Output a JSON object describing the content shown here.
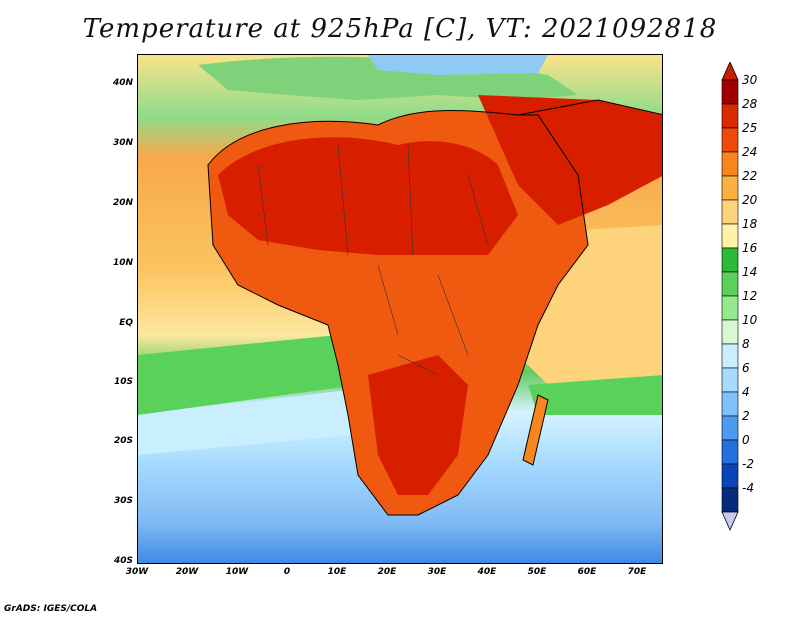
{
  "title": "Temperature at 925hPa [C], VT: 2021092818",
  "credit": "GrADS: IGES/COLA",
  "y_axis_labels": [
    "40N",
    "30N",
    "20N",
    "10N",
    "EQ",
    "10S",
    "20S",
    "30S",
    "40S"
  ],
  "x_axis_labels": [
    "30W",
    "20W",
    "10W",
    "0",
    "10E",
    "20E",
    "30E",
    "40E",
    "50E",
    "60E",
    "70E"
  ],
  "colorbar": {
    "labels": [
      "30",
      "28",
      "25",
      "24",
      "22",
      "20",
      "18",
      "16",
      "14",
      "12",
      "10",
      "8",
      "6",
      "4",
      "2",
      "0",
      "-2",
      "-4"
    ],
    "colors": [
      "#a00000",
      "#d92a00",
      "#f04a0a",
      "#f8861c",
      "#fbb040",
      "#fdd47c",
      "#fff3a8",
      "#2bbb37",
      "#5ad15a",
      "#95e890",
      "#d9f7d4",
      "#c9efff",
      "#a6dbff",
      "#7fc1ff",
      "#4b9bf1",
      "#2470de",
      "#0a46b8",
      "#062a7c"
    ],
    "top_arrow_color": "#c81e00",
    "bottom_arrow_color": "#c8c8f8"
  },
  "colors": {
    "coastline": "#000000",
    "ocean_south": "#6aaef0",
    "ocean_southwest": "#a6dbff",
    "sahara_core": "#d71f00",
    "land_hot": "#ee4410"
  }
}
